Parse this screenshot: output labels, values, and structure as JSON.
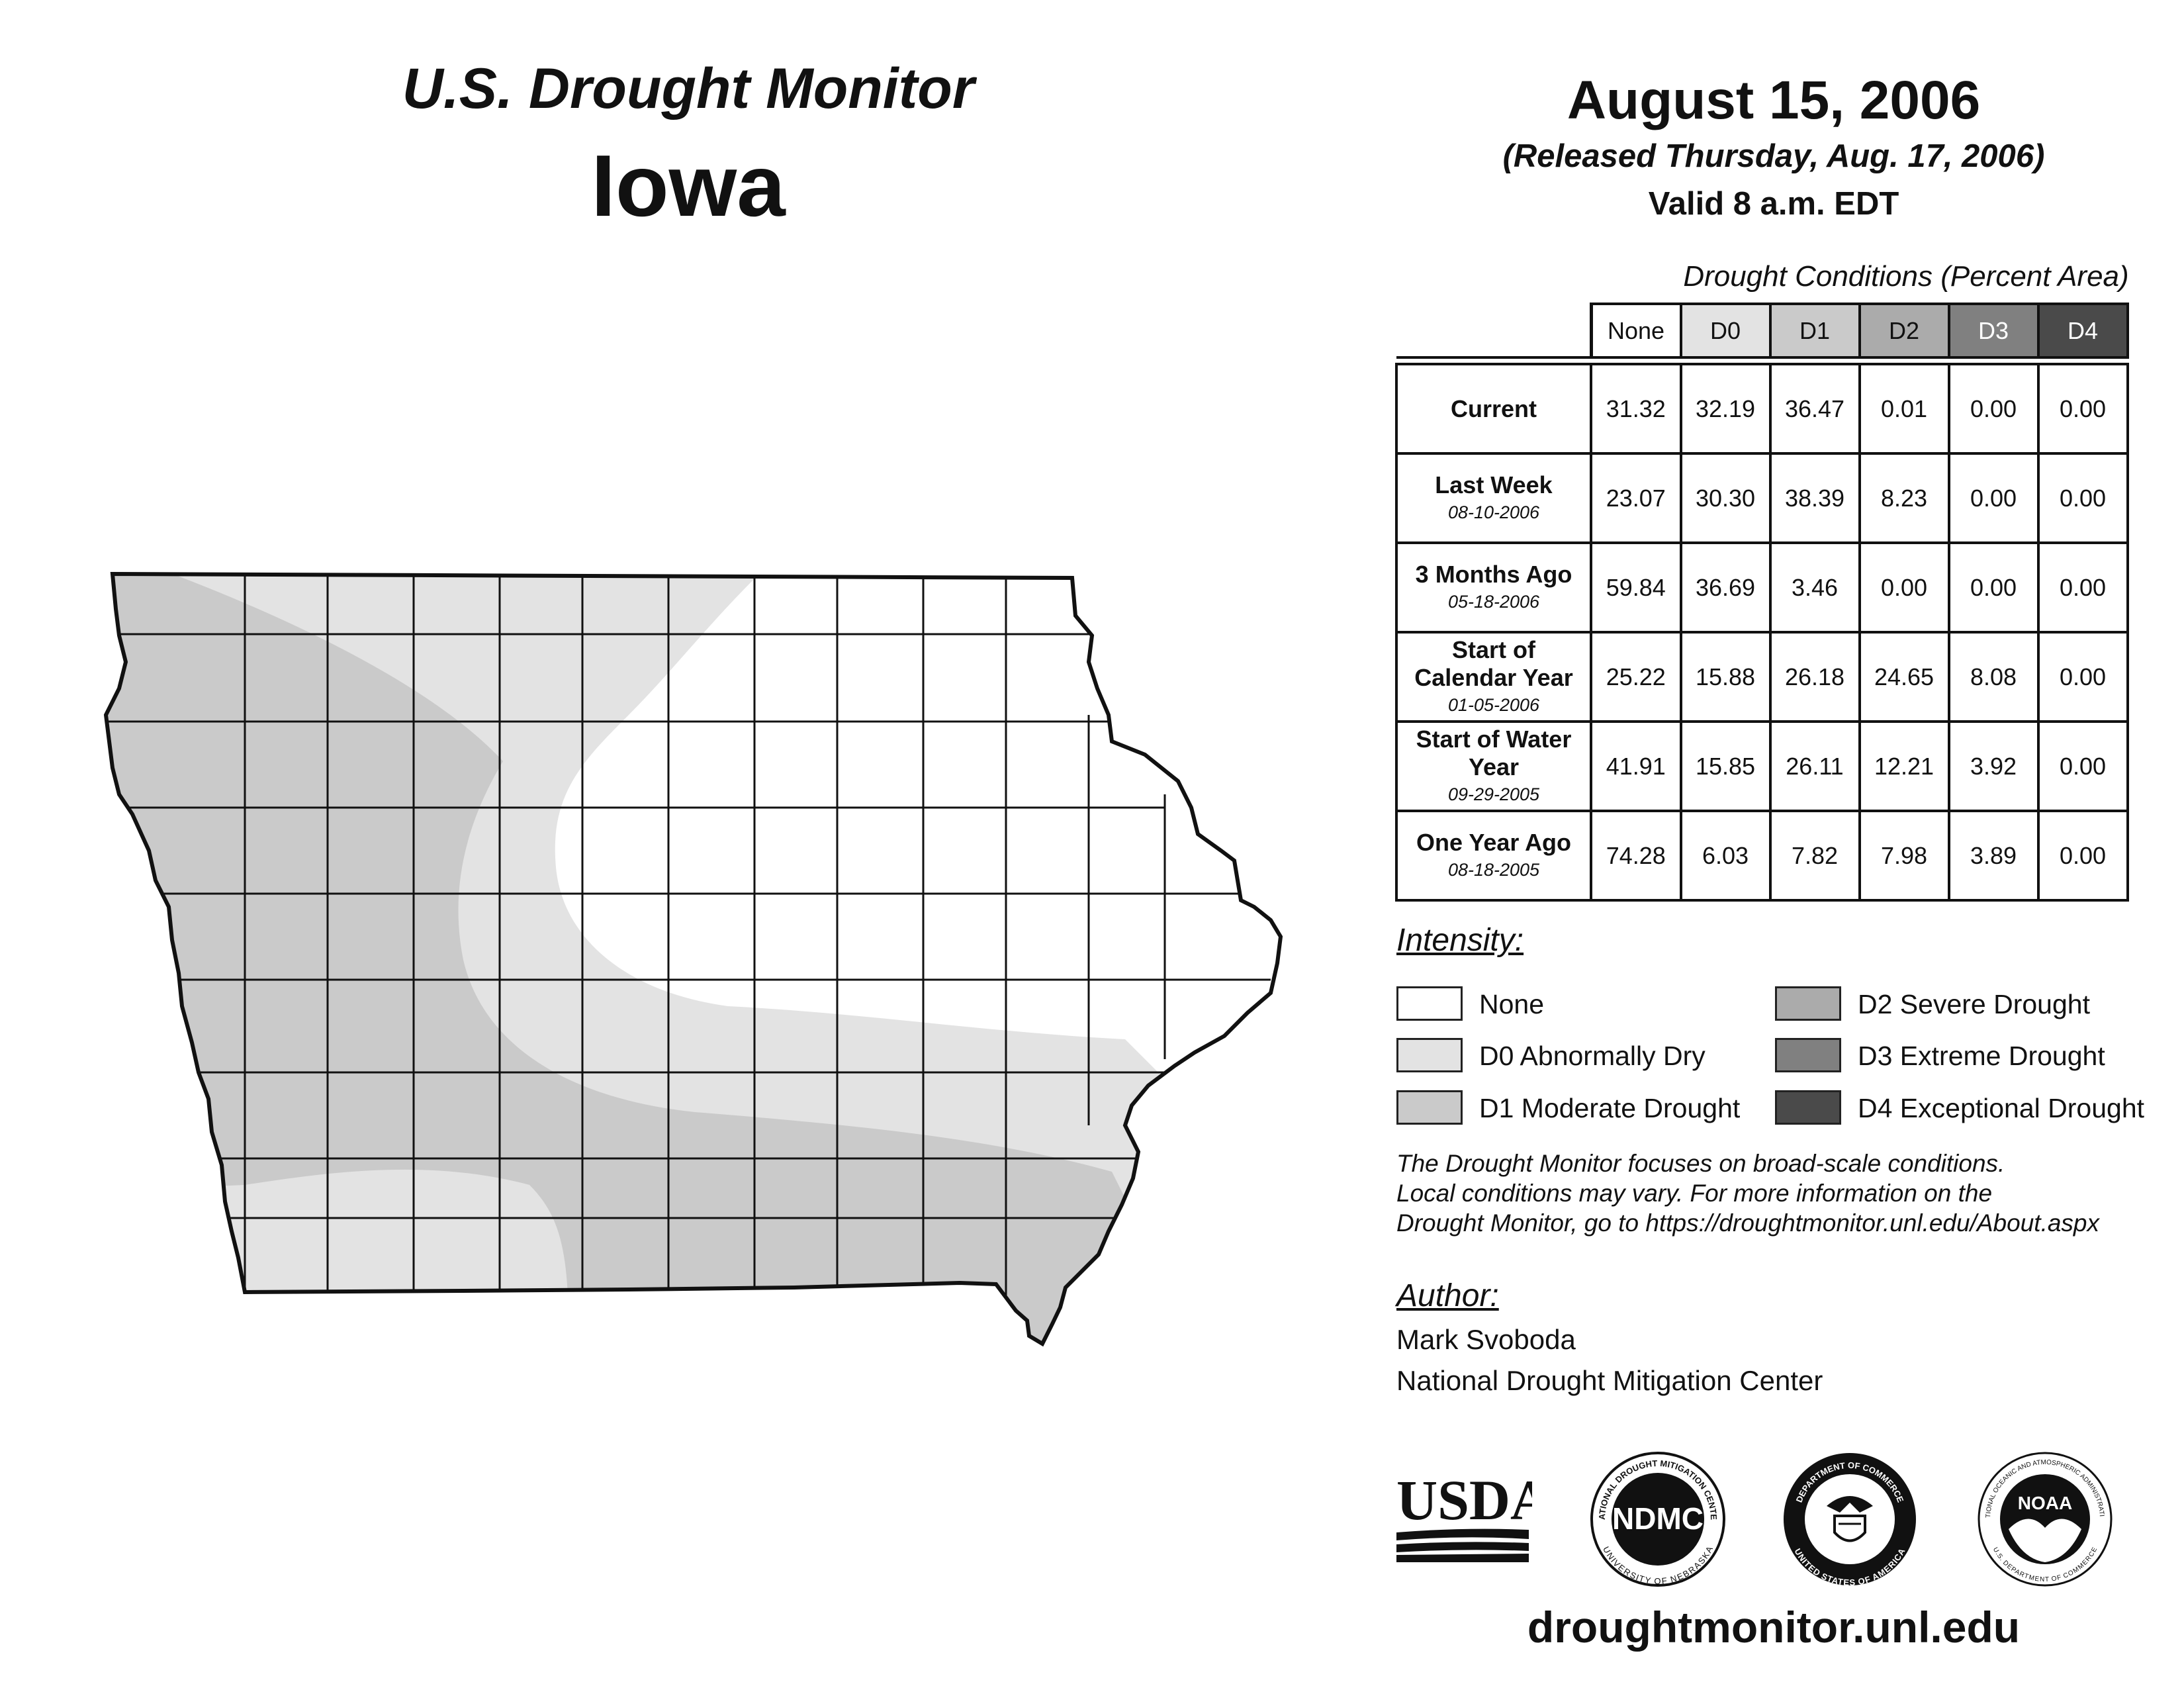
{
  "header": {
    "title": "U.S. Drought Monitor",
    "state": "Iowa",
    "date": "August 15, 2006",
    "released": "(Released Thursday, Aug. 17, 2006)",
    "valid": "Valid 8 a.m. EDT"
  },
  "conditions_table": {
    "caption": "Drought Conditions (Percent Area)",
    "columns": [
      "None",
      "D0",
      "D1",
      "D2",
      "D3",
      "D4"
    ],
    "column_colors": [
      "#ffffff",
      "#e3e3e3",
      "#cacaca",
      "#ababab",
      "#808080",
      "#4a4a4a"
    ],
    "rows": [
      {
        "label": "Current",
        "date": "",
        "values": [
          "31.32",
          "32.19",
          "36.47",
          "0.01",
          "0.00",
          "0.00"
        ]
      },
      {
        "label": "Last Week",
        "date": "08-10-2006",
        "values": [
          "23.07",
          "30.30",
          "38.39",
          "8.23",
          "0.00",
          "0.00"
        ]
      },
      {
        "label": "3 Months Ago",
        "date": "05-18-2006",
        "values": [
          "59.84",
          "36.69",
          "3.46",
          "0.00",
          "0.00",
          "0.00"
        ]
      },
      {
        "label": "Start of Calendar Year",
        "date": "01-05-2006",
        "values": [
          "25.22",
          "15.88",
          "26.18",
          "24.65",
          "8.08",
          "0.00"
        ]
      },
      {
        "label": "Start of Water Year",
        "date": "09-29-2005",
        "values": [
          "41.91",
          "15.85",
          "26.11",
          "12.21",
          "3.92",
          "0.00"
        ]
      },
      {
        "label": "One Year Ago",
        "date": "08-18-2005",
        "values": [
          "74.28",
          "6.03",
          "7.82",
          "7.98",
          "3.89",
          "0.00"
        ]
      }
    ]
  },
  "legend": {
    "title": "Intensity:",
    "items": [
      {
        "label": "None",
        "color": "#ffffff"
      },
      {
        "label": "D0 Abnormally Dry",
        "color": "#e3e3e3"
      },
      {
        "label": "D1 Moderate Drought",
        "color": "#cacaca"
      },
      {
        "label": "D2 Severe Drought",
        "color": "#ababab"
      },
      {
        "label": "D3 Extreme Drought",
        "color": "#808080"
      },
      {
        "label": "D4 Exceptional Drought",
        "color": "#4a4a4a"
      }
    ]
  },
  "note": {
    "line1": "The Drought Monitor focuses on broad-scale conditions.",
    "line2": "Local conditions may vary. For more information on the",
    "line3": "Drought Monitor, go to https://droughtmonitor.unl.edu/About.aspx"
  },
  "author": {
    "title": "Author:",
    "name": "Mark Svoboda",
    "organization": "National Drought Mitigation Center"
  },
  "logos": {
    "usda": "USDA",
    "ndmc": "NDMC",
    "ndmc_ring": "NATIONAL DROUGHT MITIGATION CENTER",
    "ndmc_ring_bottom": "UNIVERSITY OF NEBRASKA",
    "doc_ring": "DEPARTMENT OF COMMERCE",
    "doc_ring_bottom": "UNITED STATES OF AMERICA",
    "noaa": "NOAA",
    "noaa_ring": "NATIONAL OCEANIC AND ATMOSPHERIC ADMINISTRATION",
    "noaa_ring_bottom": "U.S. DEPARTMENT OF COMMERCE"
  },
  "map": {
    "state": "Iowa",
    "category_colors": {
      "none": "#ffffff",
      "d0": "#e3e3e3",
      "d1": "#cacaca"
    }
  },
  "website": "droughtmonitor.unl.edu"
}
